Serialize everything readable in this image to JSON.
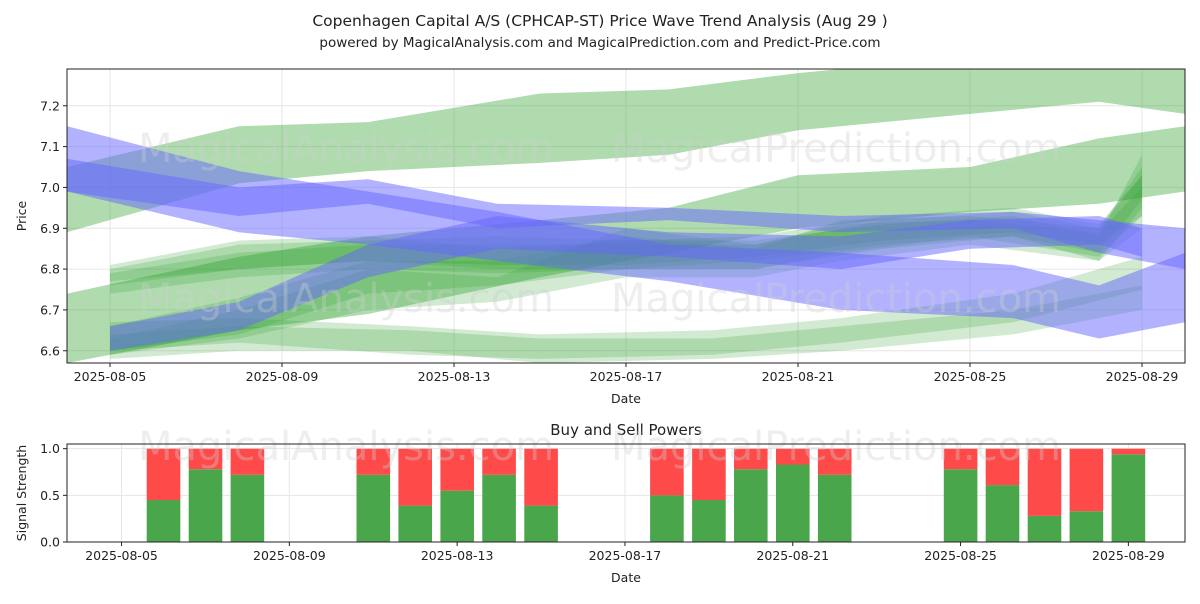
{
  "page": {
    "title": "Copenhagen Capital A/S (CPHCAP-ST) Price Wave Trend Analysis (Aug 29 )",
    "subtitle": "powered by MagicalAnalysis.com and MagicalPrediction.com and Predict-Price.com",
    "watermarks": [
      "MagicalAnalysis.com",
      "MagicalPrediction.com"
    ]
  },
  "colors": {
    "green_band": "#2ca02c",
    "blue_band": "#6666ff",
    "buy": "#4aa64a",
    "sell": "#ff4a4a",
    "grid": "#e6e6e6"
  },
  "chart_data": [
    {
      "type": "area",
      "title": "",
      "xlabel": "Date",
      "ylabel": "Price",
      "x_range": [
        "2025-08-04",
        "2025-08-30"
      ],
      "ylim": [
        6.57,
        7.29
      ],
      "x_ticks": [
        "2025-08-05",
        "2025-08-09",
        "2025-08-13",
        "2025-08-17",
        "2025-08-21",
        "2025-08-25",
        "2025-08-29"
      ],
      "y_ticks": [
        6.6,
        6.7,
        6.8,
        6.9,
        7.0,
        7.1,
        7.2
      ],
      "grid": true,
      "series": [
        {
          "color": "green",
          "x": [
            "2025-08-04",
            "2025-08-08",
            "2025-08-11",
            "2025-08-15",
            "2025-08-18",
            "2025-08-21",
            "2025-08-25",
            "2025-08-28",
            "2025-08-30"
          ],
          "low": [
            6.89,
            7.01,
            7.04,
            7.06,
            7.08,
            7.14,
            7.18,
            7.21,
            7.18
          ],
          "high": [
            7.05,
            7.15,
            7.16,
            7.23,
            7.24,
            7.28,
            7.32,
            7.33,
            7.29
          ]
        },
        {
          "color": "green",
          "x": [
            "2025-08-04",
            "2025-08-08",
            "2025-08-11",
            "2025-08-15",
            "2025-08-18",
            "2025-08-21",
            "2025-08-25",
            "2025-08-28",
            "2025-08-30"
          ],
          "low": [
            6.57,
            6.65,
            6.69,
            6.78,
            6.84,
            6.9,
            6.94,
            6.96,
            6.99
          ],
          "high": [
            6.74,
            6.83,
            6.88,
            6.92,
            6.95,
            7.03,
            7.05,
            7.12,
            7.15
          ]
        },
        {
          "color": "green",
          "x": [
            "2025-08-05",
            "2025-08-08",
            "2025-08-11",
            "2025-08-14",
            "2025-08-17",
            "2025-08-20",
            "2025-08-23",
            "2025-08-26",
            "2025-08-28",
            "2025-08-29"
          ],
          "low": [
            6.76,
            6.8,
            6.82,
            6.8,
            6.8,
            6.8,
            6.85,
            6.88,
            6.82,
            6.95
          ],
          "high": [
            6.81,
            6.87,
            6.88,
            6.85,
            6.87,
            6.87,
            6.91,
            6.93,
            6.88,
            7.08
          ]
        },
        {
          "color": "green",
          "x": [
            "2025-08-05",
            "2025-08-08",
            "2025-08-11",
            "2025-08-14",
            "2025-08-17",
            "2025-08-20",
            "2025-08-23",
            "2025-08-26",
            "2025-08-28",
            "2025-08-29"
          ],
          "low": [
            6.74,
            6.78,
            6.8,
            6.79,
            6.8,
            6.82,
            6.86,
            6.88,
            6.84,
            6.97
          ],
          "high": [
            6.79,
            6.84,
            6.86,
            6.86,
            6.86,
            6.86,
            6.92,
            6.94,
            6.9,
            7.05
          ]
        },
        {
          "color": "green",
          "x": [
            "2025-08-05",
            "2025-08-08",
            "2025-08-11",
            "2025-08-14",
            "2025-08-17",
            "2025-08-20",
            "2025-08-23",
            "2025-08-26",
            "2025-08-28",
            "2025-08-29"
          ],
          "low": [
            6.77,
            6.8,
            6.82,
            6.81,
            6.81,
            6.83,
            6.87,
            6.89,
            6.86,
            6.93
          ],
          "high": [
            6.8,
            6.86,
            6.87,
            6.88,
            6.87,
            6.88,
            6.93,
            6.95,
            6.91,
            7.03
          ]
        },
        {
          "color": "green",
          "x": [
            "2025-08-05",
            "2025-08-08",
            "2025-08-12",
            "2025-08-15",
            "2025-08-19",
            "2025-08-22",
            "2025-08-26",
            "2025-08-29"
          ],
          "low": [
            6.6,
            6.62,
            6.59,
            6.58,
            6.59,
            6.62,
            6.67,
            6.75
          ],
          "high": [
            6.67,
            6.68,
            6.66,
            6.64,
            6.65,
            6.68,
            6.74,
            6.83
          ]
        },
        {
          "color": "green",
          "x": [
            "2025-08-05",
            "2025-08-08",
            "2025-08-12",
            "2025-08-15",
            "2025-08-19",
            "2025-08-22",
            "2025-08-26",
            "2025-08-29"
          ],
          "low": [
            6.58,
            6.6,
            6.6,
            6.57,
            6.58,
            6.6,
            6.64,
            6.7
          ],
          "high": [
            6.64,
            6.66,
            6.65,
            6.63,
            6.63,
            6.66,
            6.7,
            6.76
          ]
        },
        {
          "color": "green",
          "x": [
            "2025-08-05",
            "2025-08-08",
            "2025-08-11",
            "2025-08-14",
            "2025-08-17",
            "2025-08-20",
            "2025-08-22",
            "2025-08-25",
            "2025-08-28",
            "2025-08-29"
          ],
          "low": [
            6.59,
            6.63,
            6.7,
            6.72,
            6.78,
            6.78,
            6.82,
            6.86,
            6.82,
            6.9
          ],
          "high": [
            6.63,
            6.7,
            6.8,
            6.78,
            6.9,
            6.86,
            6.91,
            6.92,
            6.89,
            7.0
          ]
        },
        {
          "color": "green",
          "x": [
            "2025-08-05",
            "2025-08-08",
            "2025-08-11",
            "2025-08-14",
            "2025-08-17",
            "2025-08-20",
            "2025-08-22",
            "2025-08-25",
            "2025-08-28",
            "2025-08-29"
          ],
          "low": [
            6.6,
            6.64,
            6.74,
            6.76,
            6.8,
            6.8,
            6.84,
            6.88,
            6.83,
            6.93
          ],
          "high": [
            6.66,
            6.73,
            6.82,
            6.82,
            6.88,
            6.85,
            6.92,
            6.93,
            6.9,
            7.03
          ]
        },
        {
          "color": "blue",
          "x": [
            "2025-08-04",
            "2025-08-08",
            "2025-08-11",
            "2025-08-14",
            "2025-08-18",
            "2025-08-22",
            "2025-08-26",
            "2025-08-28",
            "2025-08-30"
          ],
          "low": [
            6.99,
            6.89,
            6.86,
            6.82,
            6.77,
            6.7,
            6.68,
            6.63,
            6.67
          ],
          "high": [
            7.15,
            7.04,
            6.99,
            6.94,
            6.86,
            6.84,
            6.81,
            6.76,
            6.84
          ]
        },
        {
          "color": "blue",
          "x": [
            "2025-08-04",
            "2025-08-08",
            "2025-08-11",
            "2025-08-14",
            "2025-08-18",
            "2025-08-22",
            "2025-08-26",
            "2025-08-28",
            "2025-08-30"
          ],
          "low": [
            6.99,
            6.93,
            6.96,
            6.9,
            6.92,
            6.89,
            6.9,
            6.84,
            6.8
          ],
          "high": [
            7.07,
            7.0,
            7.02,
            6.96,
            6.95,
            6.93,
            6.94,
            6.92,
            6.9
          ]
        },
        {
          "color": "blue",
          "x": [
            "2025-08-05",
            "2025-08-08",
            "2025-08-11",
            "2025-08-14",
            "2025-08-18",
            "2025-08-22",
            "2025-08-25",
            "2025-08-28",
            "2025-08-29"
          ],
          "low": [
            6.6,
            6.65,
            6.78,
            6.85,
            6.83,
            6.8,
            6.85,
            6.86,
            6.83
          ],
          "high": [
            6.66,
            6.72,
            6.86,
            6.93,
            6.89,
            6.88,
            6.92,
            6.93,
            6.9
          ]
        }
      ]
    },
    {
      "type": "bar",
      "title": "Buy and Sell Powers",
      "xlabel": "Date",
      "ylabel": "Signal Strength",
      "ylim": [
        0,
        1.05
      ],
      "y_ticks": [
        0.0,
        0.5,
        1.0
      ],
      "x_ticks": [
        "2025-08-05",
        "2025-08-09",
        "2025-08-13",
        "2025-08-17",
        "2025-08-21",
        "2025-08-25",
        "2025-08-29"
      ],
      "x": [
        "2025-08-06",
        "2025-08-07",
        "2025-08-08",
        "2025-08-11",
        "2025-08-12",
        "2025-08-13",
        "2025-08-14",
        "2025-08-15",
        "2025-08-18",
        "2025-08-19",
        "2025-08-20",
        "2025-08-21",
        "2025-08-22",
        "2025-08-25",
        "2025-08-26",
        "2025-08-27",
        "2025-08-28",
        "2025-08-29"
      ],
      "series": [
        {
          "name": "Buy",
          "values": [
            0.45,
            0.78,
            0.72,
            0.72,
            0.39,
            0.55,
            0.72,
            0.39,
            0.5,
            0.45,
            0.78,
            0.83,
            0.72,
            0.78,
            0.61,
            0.28,
            0.33,
            0.94
          ]
        },
        {
          "name": "Sell",
          "values": [
            0.55,
            0.22,
            0.28,
            0.28,
            0.61,
            0.45,
            0.28,
            0.61,
            0.5,
            0.55,
            0.22,
            0.17,
            0.28,
            0.22,
            0.39,
            0.72,
            0.67,
            0.06
          ]
        }
      ]
    }
  ]
}
